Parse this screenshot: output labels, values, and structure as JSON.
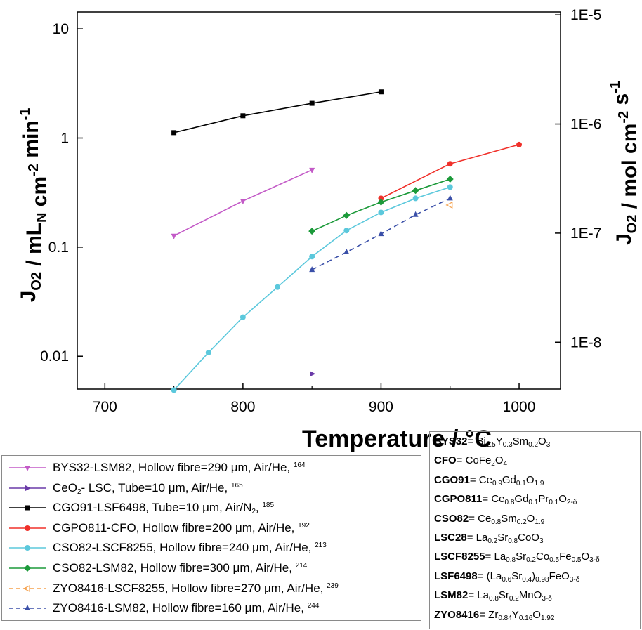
{
  "chart_data": {
    "type": "line",
    "x_axis": {
      "label": "Temperature / °C",
      "ticks": [
        700,
        800,
        900,
        1000
      ],
      "range": [
        680,
        1030
      ]
    },
    "y_left": {
      "label_parts": [
        "J",
        "O2",
        " / mL",
        "N",
        " cm",
        "-2",
        " min",
        "-1"
      ],
      "scale": "log",
      "ticks": [
        0.01,
        0.1,
        1,
        10
      ],
      "tick_labels": [
        "0.01",
        "0.1",
        "1",
        "10"
      ],
      "range": [
        0.005,
        14.3
      ]
    },
    "y_right": {
      "label_parts": [
        "J",
        "O2",
        " / mol cm",
        "-2",
        " s",
        "-1"
      ],
      "scale": "log",
      "ticks": [
        1e-08,
        1e-07,
        1e-06,
        1e-05
      ],
      "tick_labels": [
        "1E-8",
        "1E-7",
        "1E-6",
        "1E-5"
      ]
    },
    "series": [
      {
        "name": "BYS32-LSM82, Hollow fibre=290 μm, Air/He, 164",
        "color": "#c35ac7",
        "marker": "triangle-down",
        "dash": false,
        "points": [
          [
            750,
            0.127
          ],
          [
            800,
            0.265
          ],
          [
            850,
            0.51
          ]
        ]
      },
      {
        "name": "CeO2- LSC, Tube=10 μm, Air/He, 165",
        "color": "#6a3aa8",
        "marker": "triangle-right",
        "dash": false,
        "points": [
          [
            850,
            0.0069
          ]
        ]
      },
      {
        "name": "CGO91-LSF6498, Tube=10 μm, Air/N2, 185",
        "color": "#000000",
        "marker": "square",
        "dash": false,
        "points": [
          [
            750,
            1.12
          ],
          [
            800,
            1.6
          ],
          [
            850,
            2.08
          ],
          [
            900,
            2.65
          ]
        ]
      },
      {
        "name": "CGPO811-CFO, Hollow fibre=200 μm, Air/He, 192",
        "color": "#f0302a",
        "marker": "circle",
        "dash": false,
        "points": [
          [
            900,
            0.28
          ],
          [
            950,
            0.58
          ],
          [
            1000,
            0.87
          ]
        ]
      },
      {
        "name": "CSO82-LSCF8255, Hollow fibre=240 μm, Air/He, 213",
        "color": "#5bc8dc",
        "marker": "circle",
        "dash": false,
        "points": [
          [
            750,
            0.0049
          ],
          [
            775,
            0.0108
          ],
          [
            800,
            0.0228
          ],
          [
            825,
            0.043
          ],
          [
            850,
            0.082
          ],
          [
            875,
            0.142
          ],
          [
            900,
            0.208
          ],
          [
            925,
            0.28
          ],
          [
            950,
            0.355
          ]
        ]
      },
      {
        "name": "CSO82-LSM82, Hollow fibre=300 μm, Air/He, 214",
        "color": "#1c9a3a",
        "marker": "diamond",
        "dash": false,
        "points": [
          [
            850,
            0.14
          ],
          [
            875,
            0.195
          ],
          [
            900,
            0.258
          ],
          [
            925,
            0.33
          ],
          [
            950,
            0.42
          ]
        ]
      },
      {
        "name": "ZYO8416-LSCF8255, Hollow fibre=270 μm, Air/He, 239",
        "color": "#f5a04a",
        "marker": "triangle-left",
        "dash": true,
        "points": [
          [
            950,
            0.243
          ]
        ]
      },
      {
        "name": "ZYO8416-LSM82, Hollow fibre=160 μm, Air/He, 244",
        "color": "#3a4fa8",
        "marker": "triangle-up",
        "dash": true,
        "points": [
          [
            850,
            0.062
          ],
          [
            875,
            0.09
          ],
          [
            900,
            0.132
          ],
          [
            925,
            0.198
          ],
          [
            950,
            0.28
          ]
        ]
      }
    ]
  },
  "legend": [
    {
      "pre": "BYS32-LSM82, Hollow fibre=290 μm, Air/He, ",
      "ref": "164"
    },
    {
      "pre": "CeO",
      "sub": "2",
      "post": "- LSC, Tube=10 μm, Air/He, ",
      "ref": "165"
    },
    {
      "pre": "CGO91-LSF6498, Tube=10 μm, Air/N",
      "sub": "2",
      "post": ", ",
      "ref": "185"
    },
    {
      "pre": "CGPO811-CFO, Hollow fibre=200 μm, Air/He, ",
      "ref": "192"
    },
    {
      "pre": "CSO82-LSCF8255, Hollow fibre=240 μm, Air/He, ",
      "ref": "213"
    },
    {
      "pre": "CSO82-LSM82, Hollow fibre=300 μm, Air/He, ",
      "ref": "214"
    },
    {
      "pre": "ZYO8416-LSCF8255, Hollow fibre=270 μm, Air/He, ",
      "ref": "239"
    },
    {
      "pre": "ZYO8416-LSM82, Hollow fibre=160 μm, Air/He, ",
      "ref": "244"
    }
  ],
  "definitions": [
    {
      "abbr": "BYS32",
      "formula": [
        [
          "Bi",
          ""
        ],
        [
          "1.5",
          "sub"
        ],
        [
          "Y",
          ""
        ],
        [
          "0.3",
          "sub"
        ],
        [
          "Sm",
          ""
        ],
        [
          "0.2",
          "sub"
        ],
        [
          "O",
          ""
        ],
        [
          "3",
          "sub"
        ]
      ]
    },
    {
      "abbr": "CFO",
      "formula": [
        [
          "CoFe",
          ""
        ],
        [
          "2",
          "sub"
        ],
        [
          "O",
          ""
        ],
        [
          "4",
          "sub"
        ]
      ]
    },
    {
      "abbr": "CGO91",
      "formula": [
        [
          "Ce",
          ""
        ],
        [
          "0.9",
          "sub"
        ],
        [
          "Gd",
          ""
        ],
        [
          "0.1",
          "sub"
        ],
        [
          "O",
          ""
        ],
        [
          "1.9",
          "sub"
        ]
      ]
    },
    {
      "abbr": "CGPO811",
      "formula": [
        [
          "Ce",
          ""
        ],
        [
          "0.8",
          "sub"
        ],
        [
          "Gd",
          ""
        ],
        [
          "0.1",
          "sub"
        ],
        [
          "Pr",
          ""
        ],
        [
          "0.1",
          "sub"
        ],
        [
          "O",
          ""
        ],
        [
          "2-δ",
          "sub"
        ]
      ]
    },
    {
      "abbr": "CSO82",
      "formula": [
        [
          "Ce",
          ""
        ],
        [
          "0.8",
          "sub"
        ],
        [
          "Sm",
          ""
        ],
        [
          "0.2",
          "sub"
        ],
        [
          "O",
          ""
        ],
        [
          "1.9",
          "sub"
        ]
      ]
    },
    {
      "abbr": "LSC28",
      "formula": [
        [
          "La",
          ""
        ],
        [
          "0.2",
          "sub"
        ],
        [
          "Sr",
          ""
        ],
        [
          "0.8",
          "sub"
        ],
        [
          "CoO",
          ""
        ],
        [
          "3",
          "sub"
        ]
      ]
    },
    {
      "abbr": "LSCF8255",
      "formula": [
        [
          "La",
          ""
        ],
        [
          "0.8",
          "sub"
        ],
        [
          "Sr",
          ""
        ],
        [
          "0.2",
          "sub"
        ],
        [
          "Co",
          ""
        ],
        [
          "0.5",
          "sub"
        ],
        [
          "Fe",
          ""
        ],
        [
          "0.5",
          "sub"
        ],
        [
          "O",
          ""
        ],
        [
          "3-δ",
          "sub"
        ]
      ]
    },
    {
      "abbr": "LSF6498",
      "formula": [
        [
          "(La",
          ""
        ],
        [
          "0.6",
          "sub"
        ],
        [
          "Sr",
          ""
        ],
        [
          "0.4",
          "sub"
        ],
        [
          ")",
          ""
        ],
        [
          "0.98",
          "sub"
        ],
        [
          "FeO",
          ""
        ],
        [
          "3-δ",
          "sub"
        ]
      ]
    },
    {
      "abbr": "LSM82",
      "formula": [
        [
          "La",
          ""
        ],
        [
          "0.8",
          "sub"
        ],
        [
          "Sr",
          ""
        ],
        [
          "0.2",
          "sub"
        ],
        [
          "MnO",
          ""
        ],
        [
          "3-δ",
          "sub"
        ]
      ]
    },
    {
      "abbr": "ZYO8416",
      "formula": [
        [
          "Zr",
          ""
        ],
        [
          "0.84",
          "sub"
        ],
        [
          "Y",
          ""
        ],
        [
          "0.16",
          "sub"
        ],
        [
          "O",
          ""
        ],
        [
          "1.92",
          "sub"
        ]
      ]
    }
  ]
}
